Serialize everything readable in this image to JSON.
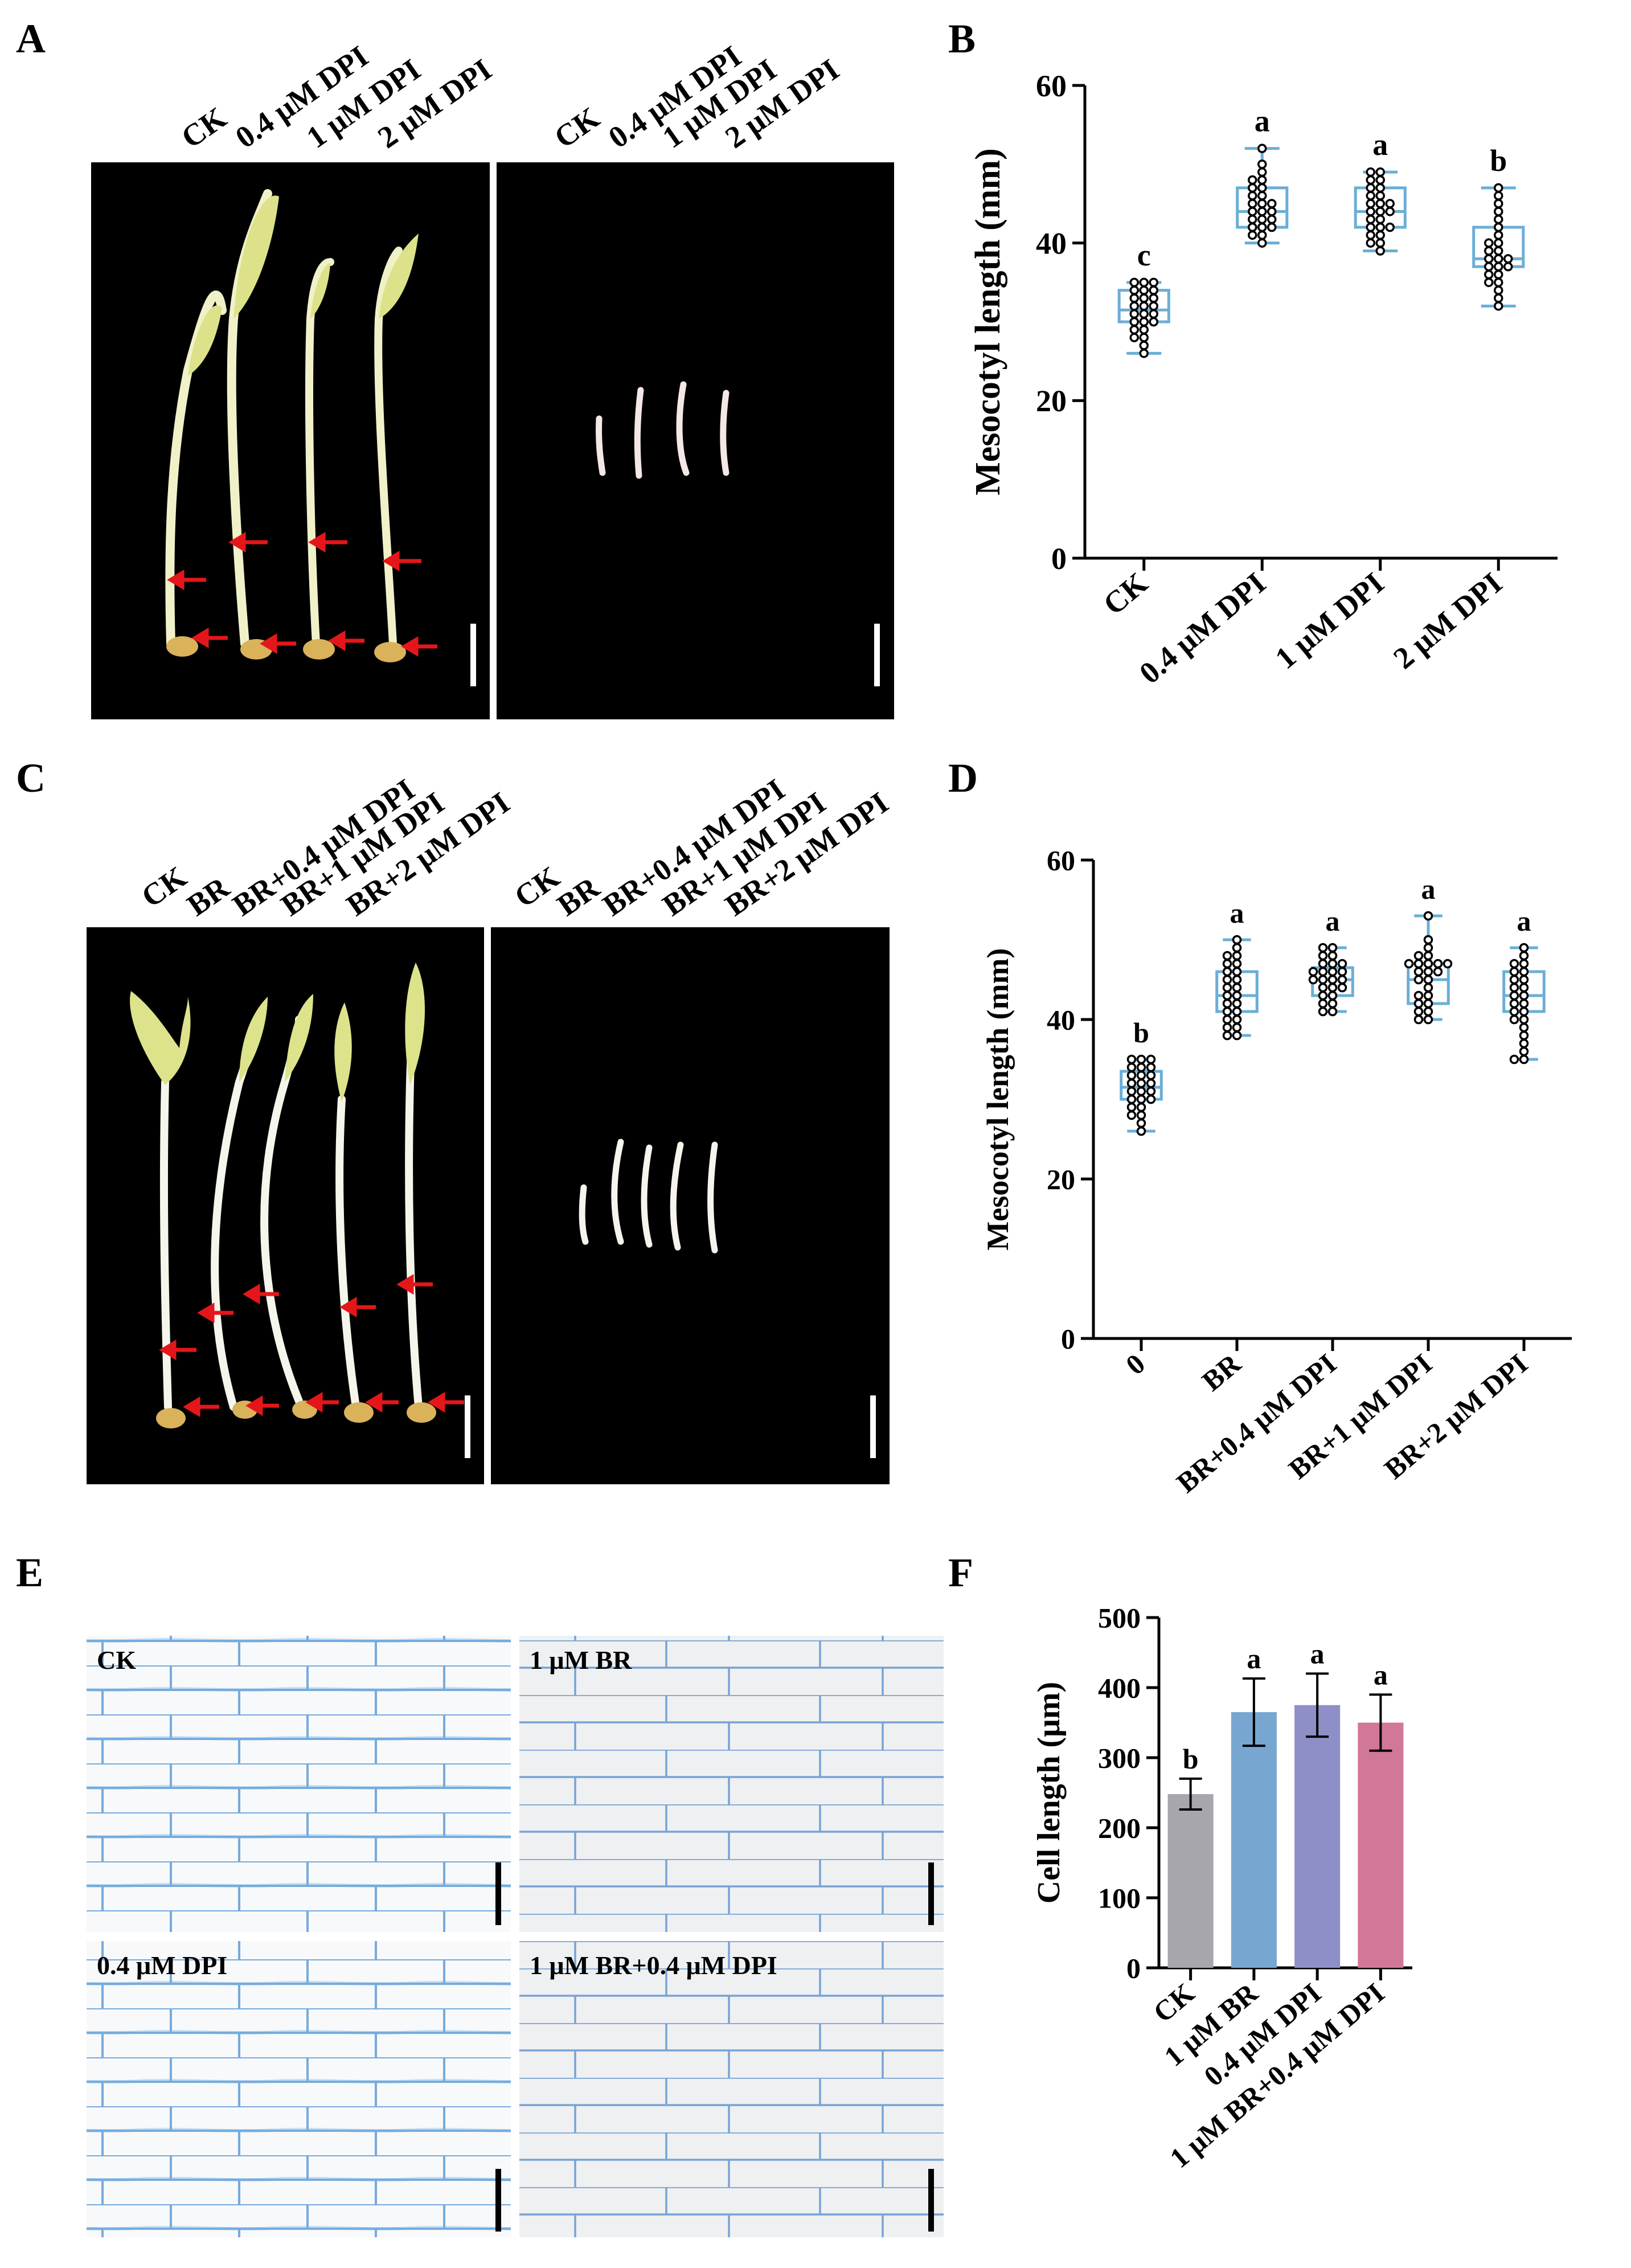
{
  "panel_letters": {
    "a": "A",
    "b": "B",
    "c": "C",
    "d": "D",
    "e": "E",
    "f": "F"
  },
  "panel_a": {
    "left_labels": [
      "CK",
      "0.4 μM DPI",
      "1 μM DPI",
      "2 μM DPI"
    ],
    "right_labels": [
      "CK",
      "0.4 μM DPI",
      "1 μM DPI",
      "2 μM DPI"
    ],
    "background": "#000000",
    "seedling_color": "#e9ec9c",
    "arrow_color": "#e5161a"
  },
  "panel_c": {
    "left_labels": [
      "CK",
      "BR",
      "BR+0.4 μM DPI",
      "BR+1 μM DPI",
      "BR+2 μM DPI"
    ],
    "right_labels": [
      "CK",
      "BR",
      "BR+0.4 μM DPI",
      "BR+1 μM DPI",
      "BR+2 μM DPI"
    ]
  },
  "panel_e": {
    "labels": [
      "CK",
      "1 μM BR",
      "0.4 μM DPI",
      "1 μM BR+0.4 μM DPI"
    ],
    "stain_color": "#4a90d2"
  },
  "chart_data": [
    {
      "id": "B",
      "type": "box",
      "ylabel": "Mesocotyl length (mm)",
      "ylim": [
        0,
        60
      ],
      "yticks": [
        0,
        20,
        40,
        60
      ],
      "categories": [
        "CK",
        "0.4 μM DPI",
        "1 μM DPI",
        "2 μM DPI"
      ],
      "box_color": "#6baed6",
      "boxes": [
        {
          "min": 26,
          "q1": 30,
          "median": 31.5,
          "q3": 34,
          "max": 35
        },
        {
          "min": 40,
          "q1": 42,
          "median": 44,
          "q3": 47,
          "max": 52
        },
        {
          "min": 39,
          "q1": 42,
          "median": 44,
          "q3": 47,
          "max": 49
        },
        {
          "min": 32,
          "q1": 37,
          "median": 38,
          "q3": 42,
          "max": 47
        }
      ],
      "letters": [
        "c",
        "a",
        "a",
        "b"
      ],
      "points": [
        [
          26,
          27,
          28,
          28,
          29,
          29,
          30,
          30,
          30,
          31,
          31,
          31,
          32,
          32,
          32,
          33,
          33,
          33,
          34,
          34,
          34,
          35,
          35,
          35
        ],
        [
          40,
          41,
          41,
          42,
          42,
          42,
          43,
          43,
          43,
          44,
          44,
          44,
          45,
          45,
          45,
          46,
          46,
          47,
          47,
          48,
          48,
          49,
          50,
          52
        ],
        [
          39,
          40,
          40,
          41,
          41,
          42,
          42,
          42,
          43,
          43,
          44,
          44,
          44,
          45,
          45,
          45,
          46,
          46,
          47,
          47,
          48,
          48,
          49,
          49
        ],
        [
          32,
          33,
          34,
          35,
          35,
          36,
          36,
          37,
          37,
          37,
          38,
          38,
          38,
          39,
          39,
          40,
          40,
          41,
          42,
          43,
          44,
          45,
          46,
          47
        ]
      ]
    },
    {
      "id": "D",
      "type": "box",
      "ylabel": "Mesocotyl length (mm)",
      "ylim": [
        0,
        60
      ],
      "yticks": [
        0,
        20,
        40,
        60
      ],
      "categories": [
        "0",
        "BR",
        "BR+0.4 μM DPI",
        "BR+1 μM DPI",
        "BR+2 μM DPI"
      ],
      "box_color": "#6baed6",
      "boxes": [
        {
          "min": 26,
          "q1": 30,
          "median": 31.5,
          "q3": 33.5,
          "max": 35
        },
        {
          "min": 38,
          "q1": 41,
          "median": 43,
          "q3": 46,
          "max": 50
        },
        {
          "min": 41,
          "q1": 43,
          "median": 45,
          "q3": 46.5,
          "max": 49
        },
        {
          "min": 40,
          "q1": 42,
          "median": 45,
          "q3": 47,
          "max": 53
        },
        {
          "min": 35,
          "q1": 41,
          "median": 43,
          "q3": 46,
          "max": 49
        }
      ],
      "letters": [
        "b",
        "a",
        "a",
        "a",
        "a"
      ],
      "points": [
        [
          26,
          27,
          28,
          28,
          29,
          29,
          30,
          30,
          30,
          31,
          31,
          31,
          32,
          32,
          32,
          33,
          33,
          33,
          34,
          34,
          34,
          35,
          35,
          35
        ],
        [
          38,
          38,
          39,
          39,
          40,
          40,
          41,
          41,
          42,
          42,
          43,
          43,
          44,
          44,
          45,
          45,
          46,
          46,
          47,
          47,
          48,
          48,
          49,
          50
        ],
        [
          41,
          41,
          42,
          42,
          43,
          43,
          44,
          44,
          44,
          45,
          45,
          45,
          45,
          46,
          46,
          46,
          46,
          47,
          47,
          47,
          48,
          48,
          49,
          49
        ],
        [
          40,
          40,
          41,
          41,
          42,
          42,
          43,
          43,
          44,
          45,
          45,
          46,
          46,
          46,
          47,
          47,
          47,
          47,
          47,
          48,
          48,
          49,
          50,
          53
        ],
        [
          35,
          35,
          36,
          37,
          38,
          39,
          40,
          40,
          41,
          41,
          42,
          42,
          43,
          43,
          44,
          44,
          45,
          45,
          46,
          46,
          47,
          47,
          48,
          49
        ]
      ]
    },
    {
      "id": "F",
      "type": "bar",
      "ylabel": "Cell length (μm)",
      "ylim": [
        0,
        500
      ],
      "yticks": [
        0,
        100,
        200,
        300,
        400,
        500
      ],
      "categories": [
        "CK",
        "1 μM BR",
        "0.4 μM DPI",
        "1 μM BR+0.4 μM DPI"
      ],
      "values": [
        248,
        365,
        375,
        350
      ],
      "errors": [
        22,
        48,
        45,
        40
      ],
      "letters": [
        "b",
        "a",
        "a",
        "a"
      ],
      "colors": [
        "#a7a6ad",
        "#77a7d0",
        "#8f8fc8",
        "#d1779a"
      ]
    }
  ]
}
